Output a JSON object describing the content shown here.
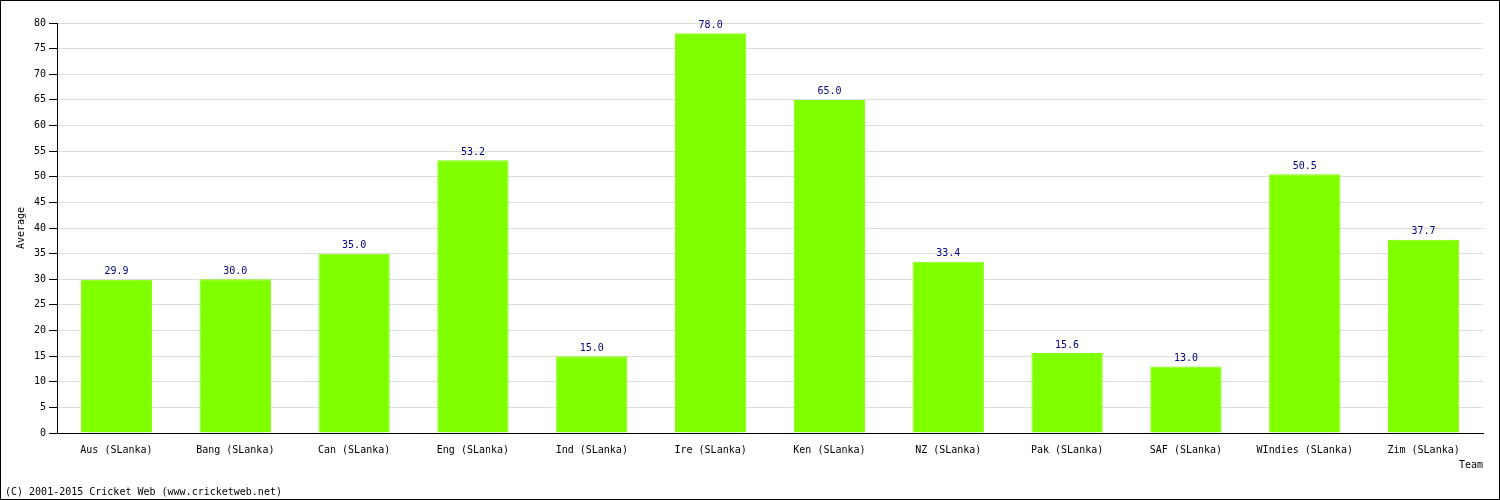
{
  "chart_data": {
    "type": "bar",
    "categories": [
      "Aus (SLanka)",
      "Bang (SLanka)",
      "Can (SLanka)",
      "Eng (SLanka)",
      "Ind (SLanka)",
      "Ire (SLanka)",
      "Ken (SLanka)",
      "NZ (SLanka)",
      "Pak (SLanka)",
      "SAF (SLanka)",
      "WIndies (SLanka)",
      "Zim (SLanka)"
    ],
    "values": [
      29.9,
      30.0,
      35.0,
      53.2,
      15.0,
      78.0,
      65.0,
      33.4,
      15.6,
      13.0,
      50.5,
      37.7
    ],
    "value_labels": [
      "29.9",
      "30.0",
      "35.0",
      "53.2",
      "15.0",
      "78.0",
      "65.0",
      "33.4",
      "15.6",
      "13.0",
      "50.5",
      "37.7"
    ],
    "data_labels": true,
    "color": "#80ff00",
    "x_label": "Team",
    "y_label": "Average",
    "annotations": [
      "(C) 2001-2015 Cricket Web (www.cricketweb.net)"
    ],
    "ylim": [
      0,
      80
    ],
    "yticks": [
      0,
      5,
      10,
      15,
      20,
      25,
      30,
      35,
      40,
      45,
      50,
      55,
      60,
      65,
      70,
      75,
      80
    ],
    "grid": true
  }
}
